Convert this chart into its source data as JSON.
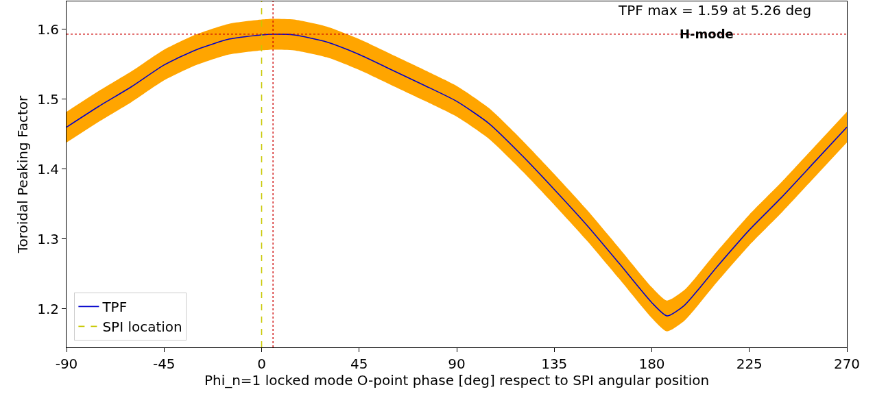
{
  "chart_data": {
    "type": "line",
    "xlabel": "Phi_n=1 locked mode O-point phase [deg] respect to SPI angular position",
    "ylabel": "Toroidal Peaking Factor",
    "x": [
      -90,
      -75,
      -60,
      -45,
      -30,
      -15,
      0,
      5.26,
      15,
      30,
      45,
      60,
      75,
      90,
      105,
      120,
      135,
      150,
      165,
      180,
      187,
      195,
      210,
      225,
      240,
      255,
      270
    ],
    "series": [
      {
        "name": "TPF",
        "color": "#0000cc",
        "values": [
          1.46,
          1.49,
          1.518,
          1.549,
          1.571,
          1.586,
          1.592,
          1.593,
          1.592,
          1.582,
          1.564,
          1.542,
          1.52,
          1.497,
          1.465,
          1.42,
          1.371,
          1.32,
          1.265,
          1.209,
          1.19,
          1.205,
          1.26,
          1.313,
          1.36,
          1.41,
          1.46
        ],
        "lower": [
          1.438,
          1.468,
          1.496,
          1.527,
          1.549,
          1.564,
          1.57,
          1.571,
          1.57,
          1.56,
          1.542,
          1.52,
          1.498,
          1.475,
          1.443,
          1.398,
          1.349,
          1.298,
          1.243,
          1.187,
          1.168,
          1.183,
          1.238,
          1.291,
          1.338,
          1.388,
          1.438
        ],
        "upper": [
          1.482,
          1.512,
          1.54,
          1.571,
          1.593,
          1.608,
          1.614,
          1.615,
          1.614,
          1.604,
          1.586,
          1.564,
          1.542,
          1.519,
          1.487,
          1.442,
          1.393,
          1.342,
          1.287,
          1.231,
          1.212,
          1.227,
          1.282,
          1.335,
          1.382,
          1.432,
          1.482
        ]
      },
      {
        "name": "SPI location",
        "type": "line",
        "color": "#c8c800",
        "line_style": "dashed",
        "x": [
          0,
          0
        ],
        "values": [
          1.145,
          1.64
        ]
      }
    ],
    "ref_lines": [
      {
        "axis": "x",
        "value": 5.26,
        "color": "#cc0000",
        "line_style": "dotted"
      },
      {
        "axis": "y",
        "value": 1.593,
        "color": "#cc0000",
        "line_style": "dotted"
      }
    ],
    "annotations": [
      "TPF max = 1.59 at 5.26 deg",
      "H-mode"
    ],
    "xlim": [
      -90,
      270
    ],
    "xticks": [
      -90,
      -45,
      0,
      45,
      90,
      135,
      180,
      225,
      270
    ],
    "ylim": [
      1.145,
      1.64
    ],
    "yticks": [
      1.2,
      1.3,
      1.4,
      1.5,
      1.6
    ],
    "grid": false,
    "legend": "bottom left",
    "marker": "none",
    "line_style": "solid"
  }
}
